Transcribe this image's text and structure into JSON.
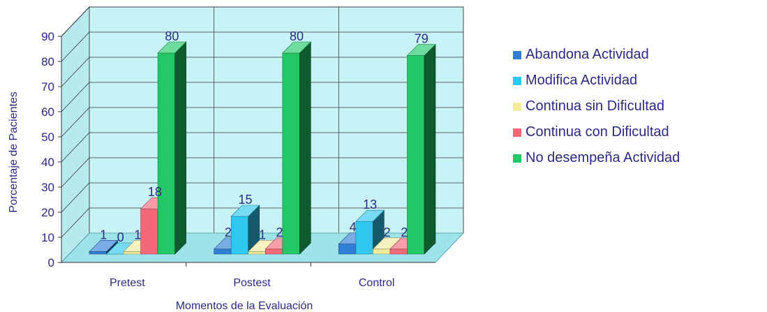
{
  "chart_data": {
    "type": "bar",
    "title": "",
    "xlabel": "Momentos de la Evaluación",
    "ylabel": "Porcentaje de Pacientes",
    "ylim": [
      0,
      90
    ],
    "yticks": [
      0,
      10,
      20,
      30,
      40,
      50,
      60,
      70,
      80,
      90
    ],
    "categories": [
      "Pretest",
      "Postest",
      "Control"
    ],
    "legend_position": "right",
    "grid": true,
    "three_d": true,
    "series": [
      {
        "name": "Abandona Actividad",
        "color": "#2f7fd6",
        "values": [
          1,
          2,
          4
        ]
      },
      {
        "name": "Modifica Actividad",
        "color": "#2fc7f0",
        "values": [
          0,
          15,
          13
        ]
      },
      {
        "name": "Continua sin Dificultad",
        "color": "#f3eb9c",
        "values": [
          1,
          1,
          2
        ]
      },
      {
        "name": "Continua con Dificultad",
        "color": "#f26a7a",
        "values": [
          18,
          2,
          2
        ]
      },
      {
        "name": "No desempeña Actividad",
        "color": "#22c866",
        "values": [
          80,
          80,
          79
        ]
      }
    ],
    "data_labels": [
      [
        "1",
        "0",
        "1",
        "18",
        "80"
      ],
      [
        "2",
        "15",
        "1",
        "2",
        "80"
      ],
      [
        "4",
        "13",
        "2",
        "2",
        "79"
      ]
    ]
  }
}
